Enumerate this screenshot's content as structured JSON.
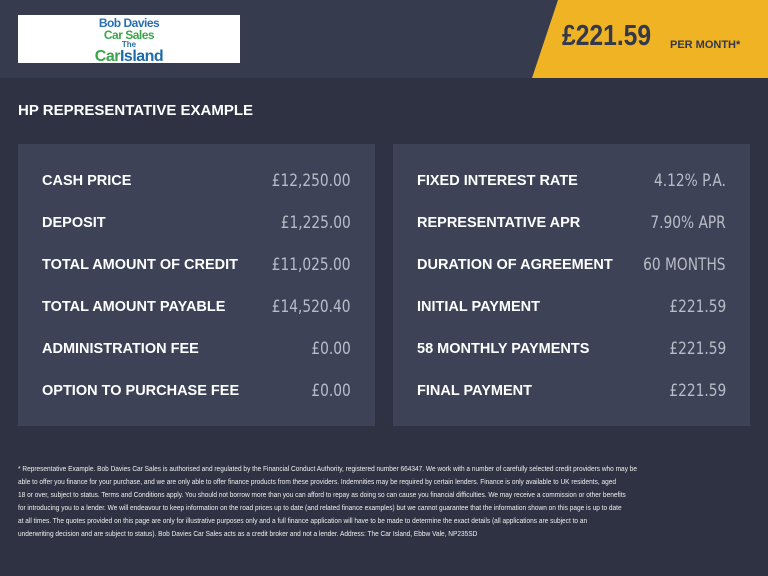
{
  "logo": {
    "line1": "Bob Davies",
    "line2": "Car Sales",
    "line3": "The",
    "line4a": "Car",
    "line4b": "Island"
  },
  "price": {
    "amount": "£221.59",
    "suffix": "PER MONTH*"
  },
  "title": "HP REPRESENTATIVE EXAMPLE",
  "left": [
    {
      "label": "CASH PRICE",
      "value": "£12,250.00"
    },
    {
      "label": "DEPOSIT",
      "value": "£1,225.00"
    },
    {
      "label": "TOTAL AMOUNT OF CREDIT",
      "value": "£11,025.00"
    },
    {
      "label": "TOTAL AMOUNT PAYABLE",
      "value": "£14,520.40"
    },
    {
      "label": "ADMINISTRATION FEE",
      "value": "£0.00"
    },
    {
      "label": "OPTION TO PURCHASE FEE",
      "value": "£0.00"
    }
  ],
  "right": [
    {
      "label": "FIXED INTEREST RATE",
      "value": "4.12% P.A."
    },
    {
      "label": "REPRESENTATIVE APR",
      "value": "7.90% APR"
    },
    {
      "label": "DURATION OF AGREEMENT",
      "value": "60 MONTHS"
    },
    {
      "label": "INITIAL PAYMENT",
      "value": "£221.59"
    },
    {
      "label": "58 MONTHLY PAYMENTS",
      "value": "£221.59"
    },
    {
      "label": "FINAL PAYMENT",
      "value": "£221.59"
    }
  ],
  "footer": [
    "* Representative Example. Bob Davies Car Sales is authorised and regulated by the Financial Conduct Authority, registered number 664347. We work with a number of carefully selected credit providers who may be",
    "able to offer you finance for your purchase, and we are only able to offer finance products from these providers. Indemnities may be required by certain lenders. Finance is only available to UK residents, aged",
    "18 or over, subject to status. Terms and Conditions apply. You should not borrow more than you can afford to repay as doing so can cause you financial difficulties. We may receive a commission or other benefits",
    "for introducing you to a lender. We will endeavour to keep information on the road prices up to date (and related finance examples) but we cannot guarantee that the information shown on this page is up to date",
    "at all times. The quotes provided on this page are only for illustrative purposes only and a full finance application will have to be made to determine the exact details (all applications are subject to an",
    "underwriting decision and are subject to status). Bob Davies Car Sales acts as a credit broker and not a lender. Address: The Car Island, Ebbw Vale, NP235SD"
  ],
  "colors": {
    "accent": "#f0b323",
    "background": "#2e3243",
    "panel": "#3d4257"
  }
}
